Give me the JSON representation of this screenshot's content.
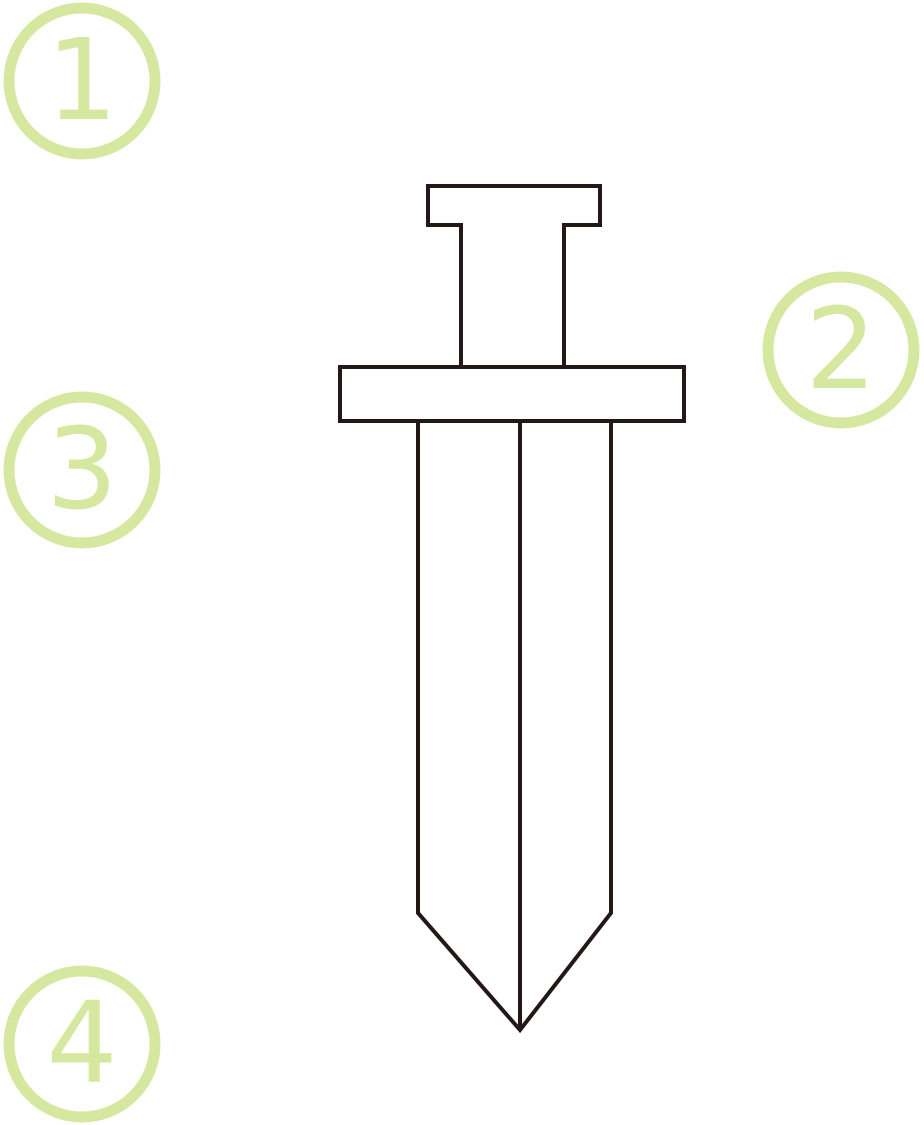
{
  "markers": {
    "m1": {
      "label": "1"
    },
    "m2": {
      "label": "2"
    },
    "m3": {
      "label": "3"
    },
    "m4": {
      "label": "4"
    }
  },
  "colors": {
    "marker": "#d6e8a0",
    "line": "#231815",
    "background": "#ffffff"
  },
  "icon": "sword-icon"
}
